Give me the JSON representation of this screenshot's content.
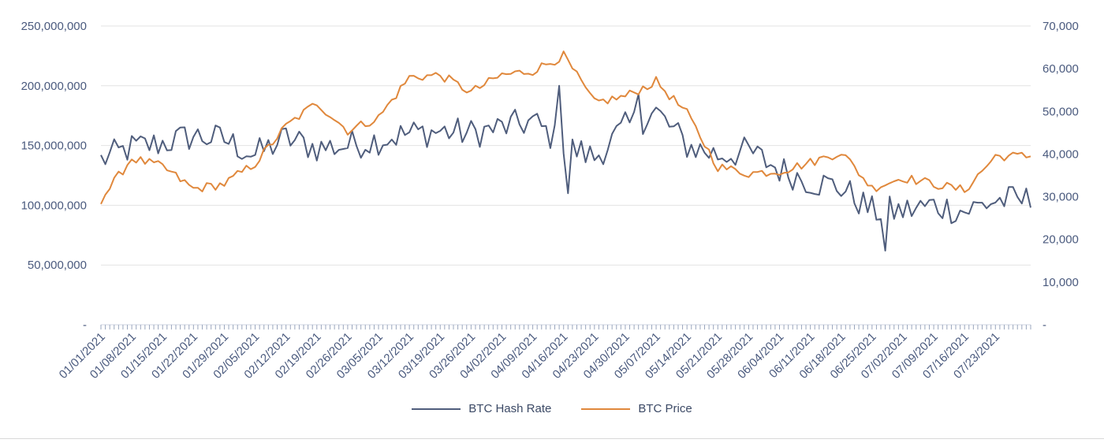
{
  "chart_data": {
    "type": "line",
    "title": "",
    "xlabel": "",
    "x_tick_labels": [
      "01/01/2021",
      "01/08/2021",
      "01/15/2021",
      "01/22/2021",
      "01/29/2021",
      "02/05/2021",
      "02/12/2021",
      "02/19/2021",
      "02/26/2021",
      "03/05/2021",
      "03/12/2021",
      "03/19/2021",
      "03/26/2021",
      "04/02/2021",
      "04/09/2021",
      "04/16/2021",
      "04/23/2021",
      "04/30/2021",
      "05/07/2021",
      "05/14/2021",
      "05/21/2021",
      "05/28/2021",
      "06/04/2021",
      "06/11/2021",
      "06/18/2021",
      "06/25/2021",
      "07/02/2021",
      "07/09/2021",
      "07/16/2021",
      "07/23/2021"
    ],
    "y_left": {
      "ylim": [
        0,
        250000000
      ],
      "tick_labels": [
        "-",
        "50,000,000",
        "100,000,000",
        "150,000,000",
        "200,000,000",
        "250,000,000"
      ]
    },
    "y_right": {
      "ylim": [
        0,
        70000
      ],
      "tick_labels": [
        "-",
        "10,000",
        "20,000",
        "30,000",
        "40,000",
        "50,000",
        "60,000",
        "70,000"
      ]
    },
    "grid": "horizontal",
    "legend_position": "bottom-center",
    "series": [
      {
        "name": "BTC Hash Rate",
        "axis": "left",
        "color": "#4f5d7c",
        "weekly_values": [
          138000000,
          148000000,
          152000000,
          158000000,
          155000000,
          142000000,
          156000000,
          148000000,
          150000000,
          155000000,
          160000000,
          162000000,
          160000000,
          165000000,
          170000000,
          150000000,
          140000000,
          165000000,
          178000000,
          150000000,
          142000000,
          145000000,
          130000000,
          120000000,
          115000000,
          95000000,
          95000000,
          100000000,
          95000000,
          104000000
        ],
        "extremes": [
          {
            "date": "04/15/2021",
            "value": 200000000
          },
          {
            "date": "04/17/2021",
            "value": 110000000
          },
          {
            "date": "05/03/2021",
            "value": 193000000
          },
          {
            "date": "06/28/2021",
            "value": 62000000
          }
        ]
      },
      {
        "name": "BTC Price",
        "axis": "right",
        "color": "#e0883c",
        "weekly_values": [
          29300,
          39000,
          37000,
          31800,
          33000,
          37800,
          46500,
          52000,
          45500,
          48500,
          58000,
          58500,
          54500,
          58500,
          59500,
          63000,
          52000,
          53500,
          57000,
          49500,
          37000,
          35500,
          36000,
          38000,
          40500,
          32000,
          34500,
          33000,
          31500,
          39500
        ]
      }
    ]
  },
  "legend": {
    "hash_label": "BTC Hash Rate",
    "price_label": "BTC Price"
  }
}
